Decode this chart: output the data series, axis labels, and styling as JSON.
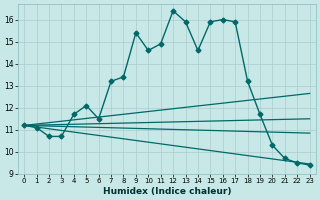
{
  "xlabel": "Humidex (Indice chaleur)",
  "ylabel": "",
  "background_color": "#c8e8e8",
  "grid_color": "#aacccc",
  "line_color": "#006868",
  "xlim": [
    -0.5,
    23.5
  ],
  "ylim": [
    9,
    16.7
  ],
  "yticks": [
    9,
    10,
    11,
    12,
    13,
    14,
    15,
    16
  ],
  "xticks": [
    0,
    1,
    2,
    3,
    4,
    5,
    6,
    7,
    8,
    9,
    10,
    11,
    12,
    13,
    14,
    15,
    16,
    17,
    18,
    19,
    20,
    21,
    22,
    23
  ],
  "xtick_labels": [
    "0",
    "1",
    "2",
    "3",
    "4",
    "5",
    "6",
    "7",
    "8",
    "9",
    "10",
    "11",
    "12",
    "13",
    "14",
    "15",
    "16",
    "17",
    "18",
    "19",
    "20",
    "21",
    "22",
    "23"
  ],
  "lines": [
    {
      "x": [
        0,
        1,
        2,
        3,
        4,
        5,
        6,
        7,
        8,
        9,
        10,
        11,
        12,
        13,
        14,
        15,
        16,
        17,
        18,
        19,
        20,
        21,
        22,
        23
      ],
      "y": [
        11.2,
        11.1,
        10.7,
        10.7,
        11.7,
        12.1,
        11.5,
        13.2,
        13.4,
        15.4,
        14.6,
        14.9,
        16.4,
        15.9,
        14.6,
        15.9,
        16.0,
        15.9,
        13.2,
        11.7,
        10.3,
        9.7,
        9.5,
        9.4
      ],
      "marker": "D",
      "markersize": 2.5,
      "linewidth": 1.0,
      "has_marker": true
    },
    {
      "x": [
        0,
        23
      ],
      "y": [
        11.2,
        12.65
      ],
      "marker": null,
      "markersize": 0,
      "linewidth": 0.9,
      "has_marker": false
    },
    {
      "x": [
        0,
        23
      ],
      "y": [
        11.2,
        11.5
      ],
      "marker": null,
      "markersize": 0,
      "linewidth": 0.9,
      "has_marker": false
    },
    {
      "x": [
        0,
        23
      ],
      "y": [
        11.2,
        10.85
      ],
      "marker": null,
      "markersize": 0,
      "linewidth": 0.9,
      "has_marker": false
    },
    {
      "x": [
        0,
        23
      ],
      "y": [
        11.2,
        9.45
      ],
      "marker": null,
      "markersize": 0,
      "linewidth": 0.9,
      "has_marker": false
    }
  ]
}
